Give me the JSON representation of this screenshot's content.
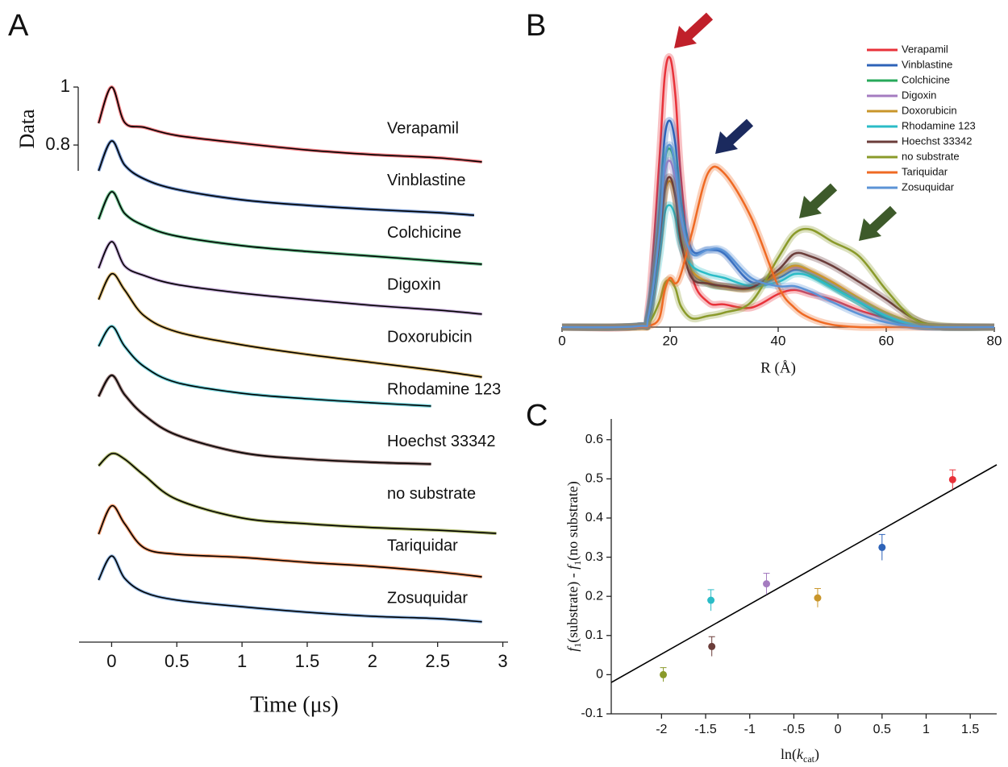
{
  "chart_data": [
    {
      "type": "line",
      "panel": "A",
      "ylabel": "Data",
      "xlabel": "Time (μs)",
      "xlim": [
        -0.25,
        3.04
      ],
      "xticks": [
        0,
        0.5,
        1,
        1.5,
        2,
        2.5,
        3
      ],
      "ylim": [
        -0.914,
        1.064
      ],
      "yticks": [
        0.8,
        1
      ],
      "fit_color": "#000000",
      "series": [
        {
          "name": "Verapamil",
          "color": "#e8323a",
          "x": [
            -0.1,
            0,
            0.1,
            0.25,
            0.5,
            1,
            1.5,
            2,
            2.5,
            2.84
          ],
          "values": [
            0.875,
            1,
            0.878,
            0.861,
            0.833,
            0.806,
            0.783,
            0.767,
            0.756,
            0.742
          ]
        },
        {
          "name": "Vinblastine",
          "color": "#2e63b8",
          "x": [
            -0.1,
            0,
            0.1,
            0.25,
            0.5,
            1,
            1.5,
            2,
            2.5,
            2.78
          ],
          "values": [
            0.711,
            0.814,
            0.731,
            0.683,
            0.647,
            0.611,
            0.592,
            0.578,
            0.567,
            0.558
          ]
        },
        {
          "name": "Colchicine",
          "color": "#27a85a",
          "x": [
            -0.1,
            0,
            0.1,
            0.25,
            0.5,
            1,
            1.5,
            2,
            2.5,
            2.84
          ],
          "values": [
            0.544,
            0.639,
            0.564,
            0.522,
            0.486,
            0.453,
            0.433,
            0.417,
            0.4,
            0.389
          ]
        },
        {
          "name": "Digoxin",
          "color": "#a57cc0",
          "x": [
            -0.1,
            0,
            0.1,
            0.25,
            0.5,
            1,
            1.5,
            2,
            2.5,
            2.84
          ],
          "values": [
            0.375,
            0.467,
            0.383,
            0.35,
            0.319,
            0.289,
            0.267,
            0.247,
            0.231,
            0.217
          ]
        },
        {
          "name": "Doxorubicin",
          "color": "#c9962a",
          "x": [
            -0.1,
            0,
            0.1,
            0.25,
            0.5,
            1,
            1.5,
            2,
            2.5,
            2.84
          ],
          "values": [
            0.267,
            0.356,
            0.3,
            0.211,
            0.156,
            0.111,
            0.078,
            0.05,
            0.022,
            0
          ]
        },
        {
          "name": "Rhodamine 123",
          "color": "#2bbcc7",
          "x": [
            -0.1,
            0,
            0.1,
            0.25,
            0.5,
            1,
            1.5,
            2,
            2.45
          ],
          "values": [
            0.106,
            0.175,
            0.106,
            0.036,
            -0.019,
            -0.056,
            -0.075,
            -0.089,
            -0.1
          ]
        },
        {
          "name": "Hoechst 33342",
          "color": "#6b3d3a",
          "x": [
            -0.1,
            0,
            0.1,
            0.25,
            0.5,
            1,
            1.5,
            2,
            2.45
          ],
          "values": [
            -0.067,
            0.006,
            -0.061,
            -0.131,
            -0.2,
            -0.261,
            -0.283,
            -0.294,
            -0.3
          ]
        },
        {
          "name": "no substrate",
          "color": "#8a9a2a",
          "x": [
            -0.1,
            0,
            0.1,
            0.25,
            0.5,
            1,
            1.5,
            2,
            2.5,
            2.95
          ],
          "values": [
            -0.306,
            -0.264,
            -0.283,
            -0.339,
            -0.422,
            -0.486,
            -0.506,
            -0.519,
            -0.528,
            -0.539
          ]
        },
        {
          "name": "Tariquidar",
          "color": "#ef6a23",
          "x": [
            -0.1,
            0,
            0.1,
            0.25,
            0.5,
            1,
            1.5,
            2,
            2.5,
            2.84
          ],
          "values": [
            -0.542,
            -0.444,
            -0.506,
            -0.589,
            -0.611,
            -0.622,
            -0.639,
            -0.653,
            -0.672,
            -0.689
          ]
        },
        {
          "name": "Zosuquidar",
          "color": "#5b93d6",
          "x": [
            -0.1,
            0,
            0.1,
            0.25,
            0.5,
            1,
            1.5,
            2,
            2.5,
            2.84
          ],
          "values": [
            -0.7,
            -0.617,
            -0.694,
            -0.742,
            -0.769,
            -0.792,
            -0.811,
            -0.825,
            -0.833,
            -0.844
          ]
        }
      ]
    },
    {
      "type": "line",
      "panel": "B",
      "xlabel": "R (Å)",
      "legend": "upper right",
      "xlim": [
        0,
        80
      ],
      "xticks": [
        0,
        20,
        40,
        60,
        80
      ],
      "ylim": [
        0,
        1
      ],
      "x": [
        0,
        14,
        16,
        18,
        19,
        20,
        21,
        22,
        24,
        27,
        30,
        35,
        40,
        43,
        46,
        50,
        55,
        60,
        65,
        70,
        80
      ],
      "series": [
        {
          "name": "Verapamil",
          "color": "#e8323a",
          "values": [
            0,
            0.003,
            0.071,
            0.563,
            0.85,
            0.913,
            0.781,
            0.508,
            0.18,
            0.085,
            0.077,
            0.066,
            0.112,
            0.126,
            0.112,
            0.093,
            0.057,
            0.03,
            0.005,
            0,
            0
          ]
        },
        {
          "name": "Vinblastine",
          "color": "#2e63b8",
          "values": [
            0,
            0.003,
            0.044,
            0.399,
            0.645,
            0.699,
            0.617,
            0.426,
            0.262,
            0.262,
            0.249,
            0.153,
            0.167,
            0.194,
            0.18,
            0.139,
            0.085,
            0.03,
            0.005,
            0,
            0
          ]
        },
        {
          "name": "Colchicine",
          "color": "#27a85a",
          "values": [
            0,
            0.003,
            0.038,
            0.344,
            0.563,
            0.604,
            0.536,
            0.372,
            0.194,
            0.148,
            0.137,
            0.137,
            0.18,
            0.208,
            0.18,
            0.139,
            0.085,
            0.038,
            0.008,
            0,
            0
          ]
        },
        {
          "name": "Digoxin",
          "color": "#a57cc0",
          "values": [
            0,
            0.003,
            0.036,
            0.317,
            0.522,
            0.563,
            0.495,
            0.344,
            0.194,
            0.153,
            0.139,
            0.139,
            0.18,
            0.202,
            0.186,
            0.148,
            0.093,
            0.044,
            0.011,
            0,
            0
          ]
        },
        {
          "name": "Doxorubicin",
          "color": "#c9962a",
          "values": [
            0,
            0.003,
            0.033,
            0.29,
            0.454,
            0.495,
            0.44,
            0.317,
            0.194,
            0.153,
            0.137,
            0.131,
            0.18,
            0.208,
            0.191,
            0.153,
            0.098,
            0.049,
            0.016,
            0,
            0
          ]
        },
        {
          "name": "Rhodamine 123",
          "color": "#2bbcc7",
          "values": [
            0,
            0.003,
            0.03,
            0.235,
            0.385,
            0.413,
            0.372,
            0.276,
            0.208,
            0.18,
            0.167,
            0.139,
            0.153,
            0.18,
            0.172,
            0.134,
            0.085,
            0.038,
            0.008,
            0,
            0
          ]
        },
        {
          "name": "Hoechst 33342",
          "color": "#6b3d3a",
          "values": [
            0,
            0.003,
            0.033,
            0.29,
            0.467,
            0.508,
            0.44,
            0.29,
            0.167,
            0.148,
            0.139,
            0.134,
            0.194,
            0.249,
            0.24,
            0.208,
            0.153,
            0.093,
            0.03,
            0.003,
            0
          ]
        },
        {
          "name": "no substrate",
          "color": "#8a9a2a",
          "values": [
            0,
            0,
            0.011,
            0.085,
            0.148,
            0.158,
            0.131,
            0.071,
            0.03,
            0.038,
            0.049,
            0.085,
            0.235,
            0.317,
            0.331,
            0.29,
            0.24,
            0.126,
            0.03,
            0.005,
            0
          ]
        },
        {
          "name": "Tariquidar",
          "color": "#ef6a23",
          "values": [
            0,
            0,
            0.003,
            0.03,
            0.126,
            0.167,
            0.148,
            0.18,
            0.317,
            0.522,
            0.522,
            0.372,
            0.139,
            0.066,
            0.03,
            0.008,
            0,
            0,
            0,
            0,
            0
          ]
        },
        {
          "name": "Zosuquidar",
          "color": "#5b93d6",
          "values": [
            0,
            0.003,
            0.038,
            0.317,
            0.563,
            0.617,
            0.536,
            0.372,
            0.249,
            0.262,
            0.257,
            0.167,
            0.139,
            0.139,
            0.12,
            0.085,
            0.044,
            0.016,
            0.003,
            0,
            0
          ]
        }
      ]
    },
    {
      "type": "scatter",
      "panel": "C",
      "ylabel": [
        "f",
        "1",
        "(substrate) - ",
        "f",
        "1",
        "(no substrate)"
      ],
      "xlabel": [
        "ln(",
        "k",
        "cat",
        ")"
      ],
      "xlim": [
        -2.57,
        1.8
      ],
      "xticks": [
        -2,
        -1.5,
        -1,
        -0.5,
        0,
        0.5,
        1,
        1.5
      ],
      "ylim": [
        -0.1,
        0.653
      ],
      "yticks": [
        -0.1,
        0,
        0.1,
        0.2,
        0.3,
        0.4,
        0.5,
        0.6
      ],
      "x": [
        -1.98,
        -1.43,
        -1.44,
        -0.81,
        -0.23,
        0.5,
        1.3
      ],
      "values": [
        0.0,
        0.072,
        0.19,
        0.232,
        0.196,
        0.325,
        0.498
      ],
      "errors": [
        0.018,
        0.025,
        0.027,
        0.027,
        0.024,
        0.033,
        0.025
      ],
      "colors": [
        "#8a9a2a",
        "#6b3d3a",
        "#2bbcc7",
        "#a57cc0",
        "#c9962a",
        "#2e63b8",
        "#e8323a"
      ],
      "fit": {
        "color": "#000000",
        "x": [
          -2.57,
          1.8
        ],
        "values": [
          -0.02,
          0.536
        ]
      }
    }
  ]
}
